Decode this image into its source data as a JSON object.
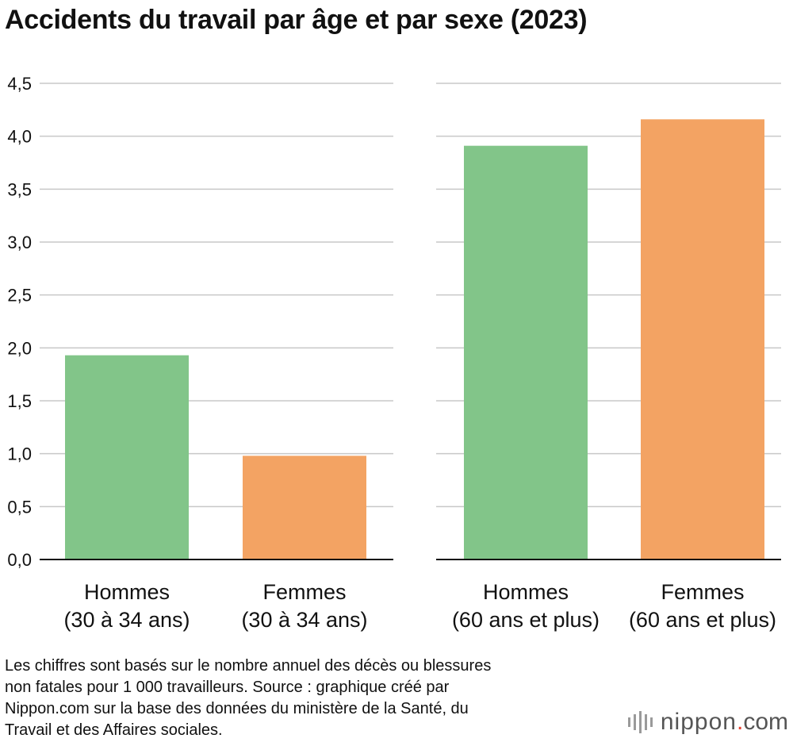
{
  "title": "Accidents du travail par âge et par sexe (2023)",
  "chart_data": {
    "type": "bar",
    "title": "Accidents du travail par âge et par sexe (2023)",
    "categories": [
      [
        "Hommes",
        "(30 à 34 ans)"
      ],
      [
        "Femmes",
        "(30 à 34 ans)"
      ],
      [
        "Hommes",
        "(60 ans et plus)"
      ],
      [
        "Femmes",
        "(60 ans et plus)"
      ]
    ],
    "values": [
      1.93,
      0.98,
      3.91,
      4.16
    ],
    "colors": [
      "#82c589",
      "#f3a363",
      "#82c589",
      "#f3a363"
    ],
    "groups": [
      [
        0,
        1
      ],
      [
        2,
        3
      ]
    ],
    "yticks": [
      "0,0",
      "0,5",
      "1,0",
      "1,5",
      "2,0",
      "2,5",
      "3,0",
      "3,5",
      "4,0",
      "4,5"
    ],
    "ylim": [
      0,
      4.5
    ],
    "xlabel": "",
    "ylabel": "",
    "grid": true,
    "legend": "none"
  },
  "note_lines": [
    "Les chiffres sont basés sur le nombre annuel des décès ou blessures",
    "non fatales pour 1 000 travailleurs. Source : graphique créé par",
    "Nippon.com sur la base des données du ministère de la Santé, du",
    "Travail et des Affaires sociales."
  ],
  "logo": {
    "name": "nippon",
    "dot": ".",
    "suffix": "com",
    "icon": "sound-bars-icon"
  }
}
